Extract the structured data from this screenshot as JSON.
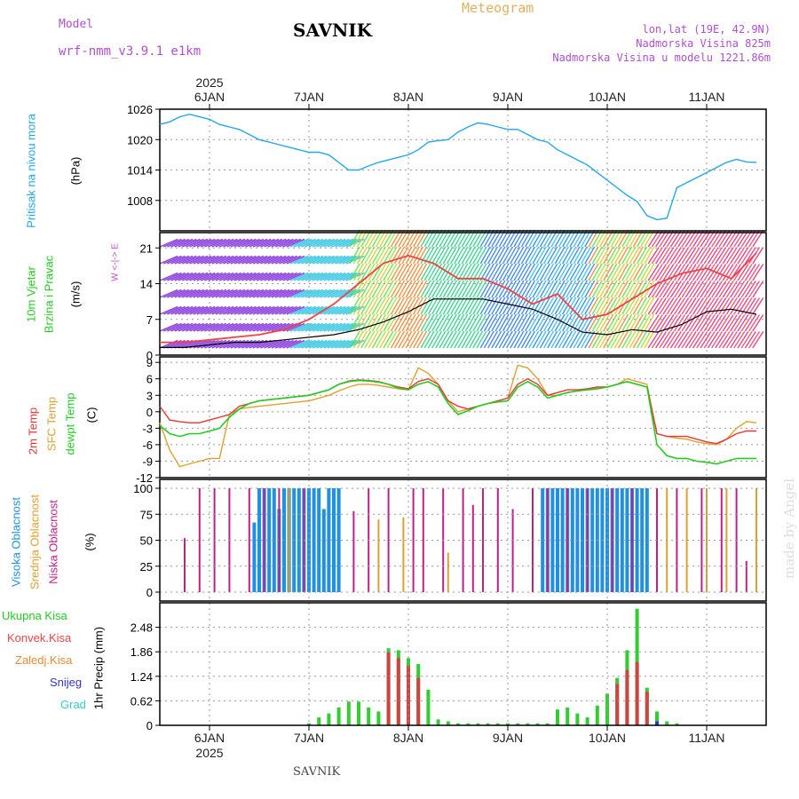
{
  "header": {
    "model_label": "Model",
    "model_name": "wrf-nmm_v3.9.1 e1km",
    "title": "SAVNIK",
    "meteogram_label": "Meteogram",
    "coords": "lon,lat (19E, 42.9N)",
    "elevation": "Nadmorska Visina 825m",
    "model_elevation": "Nadmorska Visina u modelu 1221.86m"
  },
  "footer": {
    "station": "SAVNIK",
    "watermark": "made by Angel"
  },
  "x_axis": {
    "year": "2025",
    "days": [
      "6JAN",
      "7JAN",
      "8JAN",
      "9JAN",
      "10JAN",
      "11JAN"
    ]
  },
  "panel_labels": {
    "pressure": {
      "name": "Pritisak na nivou mora",
      "unit": "(hPa)"
    },
    "wind": {
      "name1": "10m Vjetar",
      "name2": "Brzina i Pravac",
      "unit": "(m/s)",
      "compass": "W <-|-> E"
    },
    "temp": {
      "l1": "2m Temp",
      "l2": "SFC Temp",
      "l3": "dewpt Temp",
      "unit": "(C)"
    },
    "cloud": {
      "l1": "Visoka Oblacnost",
      "l2": "Srednja Oblacnost",
      "l3": "Niska Oblacnost",
      "unit": "(%)"
    },
    "precip": {
      "items": [
        "Ukupna Kisa",
        "Konvek.Kisa",
        "Zaledj.Kisa",
        "Snijeg",
        "Grad"
      ],
      "unit": "1hr Precip (mm)"
    }
  },
  "colors": {
    "pressure": "#22a8e8",
    "wind_speed": "#000000",
    "wind_gust": "#ee4444",
    "temp2m": "#ee3333",
    "sfc": "#e0a030",
    "dewpt": "#22cc22",
    "cloud_high": "#2090e0",
    "cloud_mid": "#e0a030",
    "cloud_low": "#c0208a",
    "precip_total": "#33cc33",
    "precip_conv": "#cc4444",
    "precip_frz": "#ee8833",
    "precip_snow": "#3333cc",
    "precip_hail": "#33cccc"
  },
  "chart_data": [
    {
      "type": "line",
      "title": "Pritisak na nivou mora",
      "ylabel": "(hPa)",
      "ylim": [
        1002,
        1026
      ],
      "yticks": [
        "1008",
        "1014",
        "1020",
        "1026"
      ],
      "x_unit": "days since 2025-01-05 12:00",
      "x": [
        0,
        0.1,
        0.2,
        0.3,
        0.4,
        0.5,
        0.6,
        0.7,
        0.8,
        0.9,
        1.0,
        1.1,
        1.2,
        1.3,
        1.4,
        1.5,
        1.6,
        1.7,
        1.8,
        1.9,
        2.0,
        2.1,
        2.2,
        2.3,
        2.4,
        2.5,
        2.6,
        2.7,
        2.8,
        2.9,
        3.0,
        3.1,
        3.2,
        3.3,
        3.4,
        3.5,
        3.6,
        3.7,
        3.8,
        3.9,
        4.0,
        4.1,
        4.2,
        4.3,
        4.4,
        4.5,
        4.6,
        4.7,
        4.8,
        4.9,
        5.0,
        5.1,
        5.2,
        5.3,
        5.4,
        5.5,
        5.6,
        5.7,
        5.8,
        5.9,
        6.0
      ],
      "series": [
        {
          "name": "Pritisak",
          "values": [
            1023,
            1023.5,
            1024.5,
            1025,
            1024.5,
            1024,
            1023,
            1022.5,
            1022,
            1021,
            1020,
            1019.5,
            1019,
            1018.5,
            1018,
            1017.5,
            1017.5,
            1017,
            1015.5,
            1014,
            1014,
            1014.8,
            1015.5,
            1016,
            1016.5,
            1017,
            1018,
            1019.5,
            1019.8,
            1020,
            1021.5,
            1022.5,
            1023.3,
            1023,
            1022.5,
            1022,
            1022,
            1021,
            1020,
            1019.5,
            1018,
            1017,
            1016,
            1015,
            1013.5,
            1012,
            1010.5,
            1009,
            1007.8,
            1005,
            1004.2,
            1004.5,
            1010.5,
            1011.5,
            1012.5,
            1013.5,
            1014.5,
            1015.5,
            1016.1,
            1015.6,
            1015.5
          ]
        }
      ]
    },
    {
      "type": "line",
      "title": "10m Vjetar Brzina i Pravac",
      "ylabel": "(m/s)",
      "ylim": [
        0,
        24
      ],
      "yticks": [
        "0",
        "7",
        "14",
        "21"
      ],
      "x_unit": "days since 2025-01-05 12:00",
      "x": [
        0,
        0.25,
        0.5,
        0.75,
        1.0,
        1.25,
        1.5,
        1.75,
        2.0,
        2.25,
        2.5,
        2.75,
        3.0,
        3.25,
        3.5,
        3.75,
        4.0,
        4.25,
        4.5,
        4.75,
        5.0,
        5.25,
        5.5,
        5.75,
        6.0
      ],
      "series": [
        {
          "name": "speed",
          "values": [
            1.5,
            1.5,
            2,
            2.5,
            2.5,
            3,
            3.5,
            4,
            5,
            6.5,
            8.5,
            11,
            11,
            11,
            10,
            9,
            7,
            4.5,
            4,
            5,
            4.5,
            6,
            8.5,
            9,
            8
          ]
        },
        {
          "name": "gust",
          "values": [
            2.5,
            2.5,
            3,
            3.5,
            4,
            5,
            7,
            10,
            14,
            18,
            19.5,
            18,
            15,
            15,
            13,
            10,
            12,
            7,
            8,
            11,
            14,
            16,
            17,
            15,
            20
          ]
        }
      ]
    },
    {
      "type": "line",
      "title": "2m Temp / SFC Temp / dewpt Temp",
      "ylabel": "(C)",
      "ylim": [
        -12,
        10
      ],
      "yticks": [
        "-12",
        "-9",
        "-6",
        "-3",
        "0",
        "3",
        "6",
        "9"
      ],
      "x_unit": "days since 2025-01-05 12:00",
      "x": [
        0,
        0.1,
        0.2,
        0.3,
        0.4,
        0.5,
        0.6,
        0.7,
        0.8,
        0.9,
        1.0,
        1.1,
        1.2,
        1.3,
        1.4,
        1.5,
        1.6,
        1.7,
        1.8,
        1.9,
        2.0,
        2.1,
        2.2,
        2.3,
        2.4,
        2.5,
        2.6,
        2.7,
        2.8,
        2.9,
        3.0,
        3.1,
        3.2,
        3.3,
        3.4,
        3.5,
        3.6,
        3.7,
        3.8,
        3.9,
        4.0,
        4.1,
        4.2,
        4.3,
        4.4,
        4.5,
        4.6,
        4.7,
        4.8,
        4.9,
        5.0,
        5.1,
        5.2,
        5.3,
        5.4,
        5.5,
        5.6,
        5.7,
        5.8,
        5.9,
        6.0
      ],
      "series": [
        {
          "name": "2m Temp",
          "values": [
            1,
            -1.5,
            -1.8,
            -2,
            -2,
            -1.5,
            -1,
            -0.5,
            1,
            1.5,
            2,
            2.2,
            2.4,
            2.6,
            2.8,
            3,
            3.5,
            4,
            5,
            5.6,
            5.8,
            5.7,
            5.5,
            5,
            4.5,
            4.2,
            5.5,
            6,
            5,
            2,
            1,
            0.5,
            1,
            1.5,
            2,
            2.5,
            5,
            6,
            5,
            3,
            3.5,
            4,
            4,
            4.2,
            4.5,
            4.5,
            5,
            5.5,
            5,
            4.5,
            -4,
            -4.5,
            -4.5,
            -4.5,
            -5,
            -5.5,
            -5.8,
            -5,
            -4,
            -3.5,
            -3.5
          ]
        },
        {
          "name": "SFC Temp",
          "values": [
            -2,
            -7,
            -10,
            -9.5,
            -9,
            -8.5,
            -8.5,
            -0.5,
            0.5,
            0.8,
            1,
            1.2,
            1.4,
            1.6,
            1.8,
            2,
            2.5,
            3,
            3.8,
            4.5,
            5,
            5,
            4.8,
            4.5,
            4.2,
            4,
            8,
            7,
            5,
            2,
            0,
            0.5,
            1,
            1.5,
            2,
            2.5,
            8.5,
            8,
            6,
            3,
            3,
            3.5,
            3.8,
            4,
            4.2,
            4.5,
            5,
            6,
            5.5,
            5,
            -4,
            -4.5,
            -4.8,
            -5,
            -5.5,
            -5.8,
            -6,
            -5,
            -3,
            -1.8,
            -2
          ]
        },
        {
          "name": "dewpt Temp",
          "values": [
            -2.5,
            -4,
            -4.5,
            -4,
            -4,
            -3.5,
            -3,
            -1,
            0.5,
            1.5,
            2,
            2.2,
            2.4,
            2.6,
            2.8,
            3,
            3.5,
            4,
            5,
            5.5,
            5.7,
            5.6,
            5.4,
            5,
            4.3,
            4,
            5,
            5.5,
            4.5,
            1.5,
            -0.5,
            0.2,
            1,
            1.5,
            1.8,
            2,
            4.5,
            5.5,
            4.5,
            2.5,
            3,
            3.5,
            3.8,
            4,
            4.2,
            4.5,
            5,
            5.5,
            5,
            4.5,
            -6,
            -8,
            -8.5,
            -8.5,
            -9,
            -9.2,
            -9.5,
            -9,
            -8.5,
            -8.5,
            -8.5
          ]
        }
      ]
    },
    {
      "type": "bar",
      "title": "Visoka / Srednja / Niska Oblacnost",
      "ylabel": "(%)",
      "ylim": [
        0,
        100
      ],
      "yticks": [
        "0",
        "25",
        "50",
        "75",
        "100"
      ],
      "x_unit": "days since 2025-01-05 12:00",
      "series": [
        {
          "name": "Visoka Oblacnost",
          "x": [
            0.95,
            1.0,
            1.05,
            1.1,
            1.15,
            1.2,
            1.25,
            1.3,
            1.35,
            1.4,
            1.45,
            1.5,
            1.55,
            1.6,
            1.65,
            1.7,
            1.75,
            1.8,
            3.85,
            3.9,
            3.95,
            4.0,
            4.05,
            4.1,
            4.15,
            4.2,
            4.25,
            4.3,
            4.35,
            4.4,
            4.45,
            4.5,
            4.55,
            4.6,
            4.65,
            4.7,
            4.75,
            4.8,
            4.85,
            4.9
          ],
          "values": [
            67,
            100,
            100,
            100,
            100,
            80,
            100,
            100,
            100,
            100,
            100,
            100,
            100,
            100,
            80,
            100,
            100,
            100,
            100,
            100,
            100,
            100,
            100,
            100,
            100,
            100,
            100,
            100,
            100,
            100,
            100,
            100,
            100,
            100,
            100,
            100,
            100,
            100,
            100,
            100
          ]
        },
        {
          "name": "Srednja Oblacnost",
          "x": [
            1.3,
            2.2,
            2.45,
            2.9,
            5.0,
            5.1,
            5.3,
            5.5,
            5.7,
            6.0
          ],
          "values": [
            100,
            70,
            72,
            38,
            100,
            100,
            100,
            100,
            100,
            100
          ]
        },
        {
          "name": "Niska Oblacnost",
          "x": [
            0.25,
            0.4,
            0.55,
            0.7,
            0.9,
            1.05,
            1.2,
            1.45,
            1.95,
            2.1,
            2.3,
            2.55,
            2.65,
            2.85,
            3.05,
            3.15,
            3.25,
            3.4,
            3.55,
            3.75,
            3.9,
            4.1,
            4.3,
            4.55,
            4.75,
            5.0,
            5.2,
            5.45,
            5.65,
            5.8,
            5.9
          ],
          "values": [
            52,
            100,
            100,
            100,
            100,
            100,
            100,
            100,
            78,
            100,
            100,
            100,
            100,
            100,
            100,
            84,
            100,
            100,
            80,
            100,
            100,
            100,
            100,
            100,
            100,
            100,
            100,
            100,
            100,
            100,
            30
          ]
        }
      ]
    },
    {
      "type": "bar",
      "title": "1hr Precip",
      "ylabel": "1hr Precip (mm)",
      "ylim": [
        0,
        3.1
      ],
      "yticks": [
        "0",
        "0.62",
        "1.24",
        "1.86",
        "2.48"
      ],
      "x_unit": "days since 2025-01-05 12:00",
      "series": [
        {
          "name": "Ukupna Kisa",
          "x": [
            1.5,
            1.6,
            1.7,
            1.8,
            1.9,
            2.0,
            2.1,
            2.2,
            2.3,
            2.4,
            2.5,
            2.6,
            2.7,
            2.8,
            2.9,
            3.0,
            3.1,
            3.2,
            3.3,
            3.4,
            3.5,
            3.6,
            3.7,
            3.8,
            3.9,
            4.0,
            4.1,
            4.2,
            4.3,
            4.4,
            4.5,
            4.6,
            4.7,
            4.8,
            4.9,
            5.0,
            5.1,
            5.2
          ],
          "values": [
            0.05,
            0.2,
            0.3,
            0.45,
            0.6,
            0.6,
            0.45,
            0.35,
            1.95,
            1.9,
            1.7,
            1.55,
            0.9,
            0.15,
            0.1,
            0.05,
            0.05,
            0.05,
            0.05,
            0.05,
            0.05,
            0.05,
            0.05,
            0.05,
            0.05,
            0.4,
            0.45,
            0.3,
            0.2,
            0.5,
            0.8,
            1.2,
            1.9,
            2.95,
            0.95,
            0.35,
            0.1,
            0.05
          ]
        },
        {
          "name": "Konvek.Kisa",
          "x": [
            2.3,
            2.4,
            2.5,
            2.6,
            4.6,
            4.7,
            4.8,
            4.9
          ],
          "values": [
            1.85,
            1.7,
            1.5,
            1.2,
            1.05,
            1.4,
            1.6,
            0.85
          ]
        },
        {
          "name": "Zaledj.Kisa",
          "x": [],
          "values": []
        },
        {
          "name": "Snijeg",
          "x": [
            5.0
          ],
          "values": [
            0.1
          ]
        },
        {
          "name": "Grad",
          "x": [],
          "values": []
        }
      ]
    }
  ]
}
